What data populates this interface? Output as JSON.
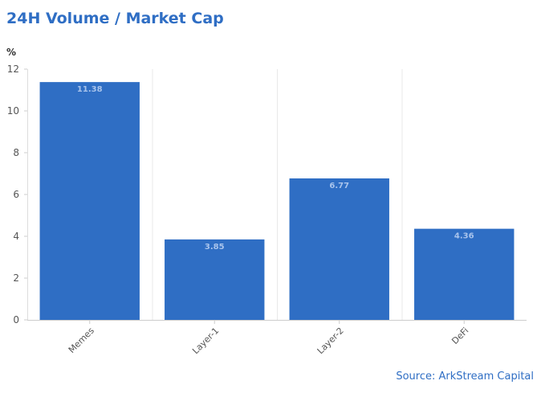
{
  "chart_data": {
    "type": "bar",
    "title": "24H Volume / Market Cap",
    "ylabel": "%",
    "xlabel": "",
    "categories": [
      "Memes",
      "Layer-1",
      "Layer-2",
      "DeFi"
    ],
    "values": [
      11.38,
      3.85,
      6.77,
      4.36
    ],
    "data_labels": [
      "11.38",
      "3.85",
      "6.77",
      "4.36"
    ],
    "ylim": [
      0,
      12
    ],
    "yticks": [
      0,
      2,
      4,
      6,
      8,
      10,
      12
    ],
    "bar_color": "#2f6ec4",
    "grid": "vertical",
    "legend": "none"
  },
  "source": "Source: ArkStream Capital"
}
